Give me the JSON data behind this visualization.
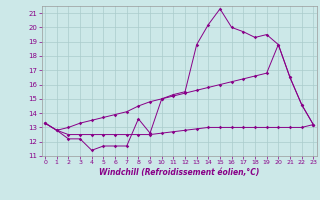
{
  "title": "",
  "xlabel": "Windchill (Refroidissement éolien,°C)",
  "background_color": "#cce8e8",
  "grid_color": "#aacccc",
  "line_color": "#880088",
  "x_ticks": [
    0,
    1,
    2,
    3,
    4,
    5,
    6,
    7,
    8,
    9,
    10,
    11,
    12,
    13,
    14,
    15,
    16,
    17,
    18,
    19,
    20,
    21,
    22,
    23
  ],
  "y_ticks": [
    11,
    12,
    13,
    14,
    15,
    16,
    17,
    18,
    19,
    20,
    21
  ],
  "xlim": [
    -0.3,
    23.3
  ],
  "ylim": [
    11,
    21.5
  ],
  "line1_x": [
    0,
    1,
    2,
    3,
    4,
    5,
    6,
    7,
    8,
    9,
    10,
    11,
    12,
    13,
    14,
    15,
    16,
    17,
    18,
    19,
    20,
    21,
    22,
    23
  ],
  "line1_y": [
    13.3,
    12.8,
    12.2,
    12.2,
    11.4,
    11.7,
    11.7,
    11.7,
    13.6,
    12.6,
    15.0,
    15.3,
    15.5,
    18.8,
    20.2,
    21.3,
    20.0,
    19.7,
    19.3,
    19.5,
    18.8,
    16.5,
    14.6,
    13.2
  ],
  "line2_x": [
    0,
    1,
    2,
    3,
    4,
    5,
    6,
    7,
    8,
    9,
    10,
    11,
    12,
    13,
    14,
    15,
    16,
    17,
    18,
    19,
    20,
    21,
    22,
    23
  ],
  "line2_y": [
    13.3,
    12.8,
    13.0,
    13.3,
    13.5,
    13.7,
    13.9,
    14.1,
    14.5,
    14.8,
    15.0,
    15.2,
    15.4,
    15.6,
    15.8,
    16.0,
    16.2,
    16.4,
    16.6,
    16.8,
    18.8,
    16.5,
    14.6,
    13.2
  ],
  "line3_x": [
    0,
    1,
    2,
    3,
    4,
    5,
    6,
    7,
    8,
    9,
    10,
    11,
    12,
    13,
    14,
    15,
    16,
    17,
    18,
    19,
    20,
    21,
    22,
    23
  ],
  "line3_y": [
    13.3,
    12.8,
    12.5,
    12.5,
    12.5,
    12.5,
    12.5,
    12.5,
    12.5,
    12.5,
    12.6,
    12.7,
    12.8,
    12.9,
    13.0,
    13.0,
    13.0,
    13.0,
    13.0,
    13.0,
    13.0,
    13.0,
    13.0,
    13.2
  ]
}
